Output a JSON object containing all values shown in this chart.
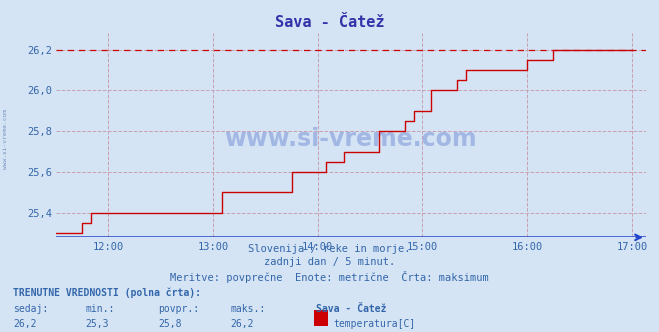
{
  "title": "Sava - Čatež",
  "title_color": "#3333aa",
  "bg_color": "#d4e4f4",
  "plot_bg_color": "#d4e4f4",
  "line_color": "#cc0000",
  "max_line_color": "#cc0000",
  "axis_color": "#3366aa",
  "grid_color": "#c8a0b0",
  "x_min": 0,
  "x_max": 330,
  "y_min": 25.28,
  "y_max": 26.28,
  "yticks": [
    25.4,
    25.6,
    25.8,
    26.0,
    26.2
  ],
  "xtick_positions": [
    30,
    90,
    150,
    210,
    270,
    330
  ],
  "xtick_labels": [
    "12:00",
    "13:00",
    "14:00",
    "15:00",
    "16:00",
    "17:00"
  ],
  "max_value": 26.2,
  "watermark_text": "www.si-vreme.com",
  "subtitle_line1": "Slovenija / reke in morje.",
  "subtitle_line2": "zadnji dan / 5 minut.",
  "subtitle_line3": "Meritve: povprečne  Enote: metrične  Črta: maksimum",
  "footer_label1": "TRENUTNE VREDNOSTI (polna črta):",
  "footer_col1": "sedaj:",
  "footer_col2": "min.:",
  "footer_col3": "povpr.:",
  "footer_col4": "maks.:",
  "footer_col5": "Sava - Čatež",
  "footer_val1": "26,2",
  "footer_val2": "25,3",
  "footer_val3": "25,8",
  "footer_val4": "26,2",
  "footer_series": "temperatura[C]",
  "data_x": [
    0,
    5,
    10,
    15,
    20,
    25,
    30,
    35,
    40,
    45,
    50,
    55,
    60,
    65,
    70,
    75,
    80,
    85,
    90,
    95,
    100,
    105,
    110,
    115,
    120,
    125,
    130,
    135,
    140,
    145,
    150,
    155,
    160,
    165,
    170,
    175,
    180,
    185,
    190,
    195,
    200,
    205,
    210,
    215,
    220,
    225,
    230,
    235,
    240,
    245,
    250,
    255,
    260,
    265,
    270,
    275,
    280,
    285,
    290,
    295,
    300,
    305,
    310,
    315,
    320,
    325,
    330
  ],
  "data_y": [
    25.3,
    25.3,
    25.3,
    25.35,
    25.4,
    25.4,
    25.4,
    25.4,
    25.4,
    25.4,
    25.4,
    25.4,
    25.4,
    25.4,
    25.4,
    25.4,
    25.4,
    25.4,
    25.4,
    25.5,
    25.5,
    25.5,
    25.5,
    25.5,
    25.5,
    25.5,
    25.5,
    25.6,
    25.6,
    25.6,
    25.6,
    25.65,
    25.65,
    25.7,
    25.7,
    25.7,
    25.7,
    25.8,
    25.8,
    25.8,
    25.85,
    25.9,
    25.9,
    26.0,
    26.0,
    26.0,
    26.05,
    26.1,
    26.1,
    26.1,
    26.1,
    26.1,
    26.1,
    26.1,
    26.15,
    26.15,
    26.15,
    26.2,
    26.2,
    26.2,
    26.2,
    26.2,
    26.2,
    26.2,
    26.2,
    26.2,
    26.2
  ]
}
